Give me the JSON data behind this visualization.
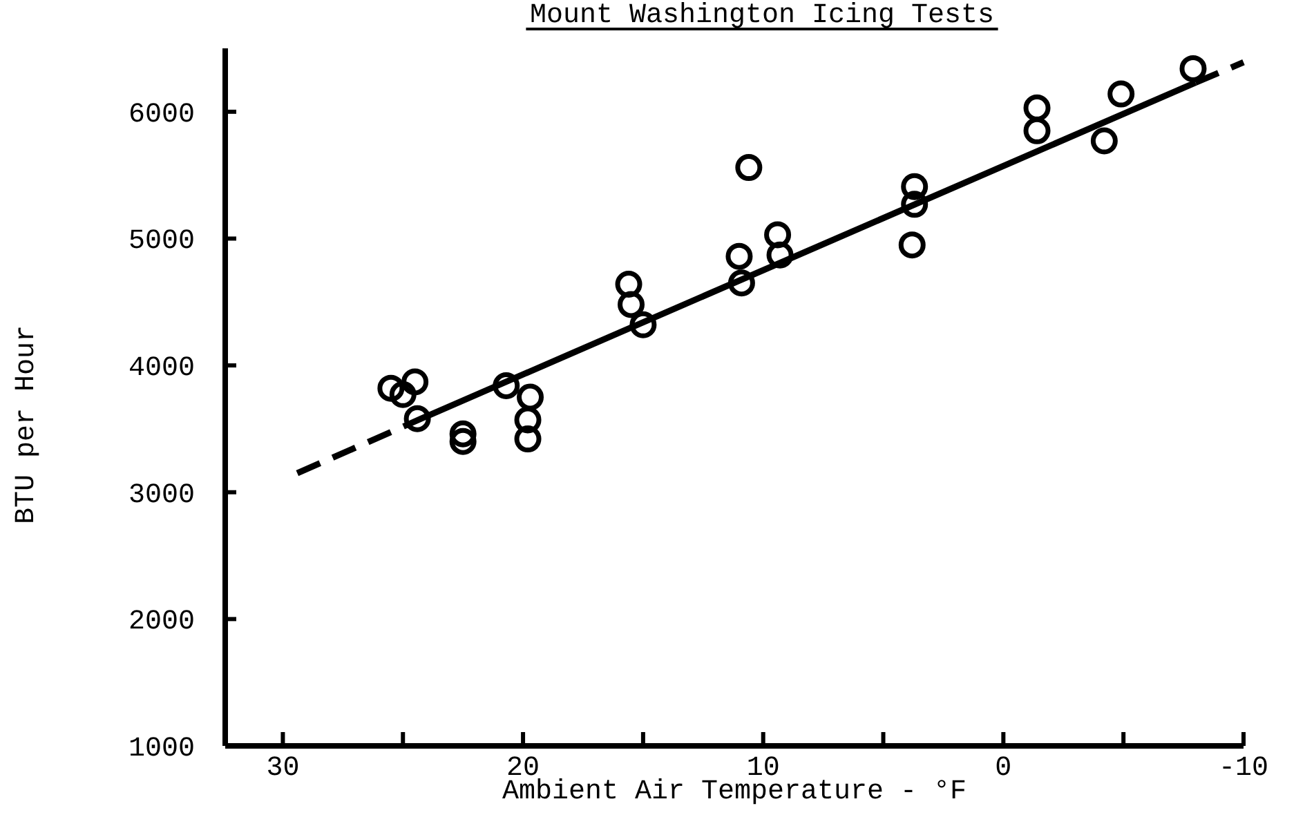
{
  "chart_data": {
    "type": "scatter",
    "title": "Mount Washington Icing Tests",
    "xlabel": "Ambient Air Temperature - °F",
    "ylabel": "BTU per Hour",
    "xlim": [
      32.4,
      -10
    ],
    "xticks": [
      30,
      {
        "value": 25,
        "label": null
      },
      20,
      {
        "value": 15,
        "label": null
      },
      10,
      {
        "value": 5,
        "label": null
      },
      0,
      {
        "value": -5,
        "label": null
      },
      -10
    ],
    "ylim": [
      1000,
      6500
    ],
    "yticks": [
      1000,
      2000,
      3000,
      4000,
      5000,
      6000
    ],
    "grid": false,
    "marker": "circle",
    "series": [
      {
        "color": "#000000",
        "x": [
          25,
          25.5,
          24.5,
          24.4,
          22.5,
          22.5,
          20.7,
          19.7,
          19.8,
          19.8,
          15.6,
          15.5,
          15,
          11,
          10.9,
          10.6,
          9.4,
          9.3,
          3.7,
          3.7,
          3.8,
          -1.4,
          -1.4,
          -4.2,
          -4.9,
          -7.9
        ],
        "values": [
          3770,
          3820,
          3870,
          3580,
          3460,
          3400,
          3840,
          3750,
          3570,
          3420,
          4640,
          4480,
          4320,
          4860,
          4650,
          5560,
          5030,
          4870,
          5410,
          5270,
          4950,
          6030,
          5850,
          5770,
          6140,
          6340
        ]
      },
      {
        "type": "line",
        "color": "#000000",
        "line_style": "dashed",
        "marker": "none",
        "x": [
          29.4,
          24
        ],
        "values": [
          3150,
          3600
        ]
      },
      {
        "type": "line",
        "color": "#000000",
        "line_style": "solid",
        "marker": "none",
        "x": [
          24,
          -8
        ],
        "values": [
          3600,
          6230
        ]
      },
      {
        "type": "line",
        "color": "#000000",
        "line_style": "dashed",
        "marker": "none",
        "x": [
          -8,
          -10
        ],
        "values": [
          6230,
          6390
        ]
      }
    ]
  }
}
